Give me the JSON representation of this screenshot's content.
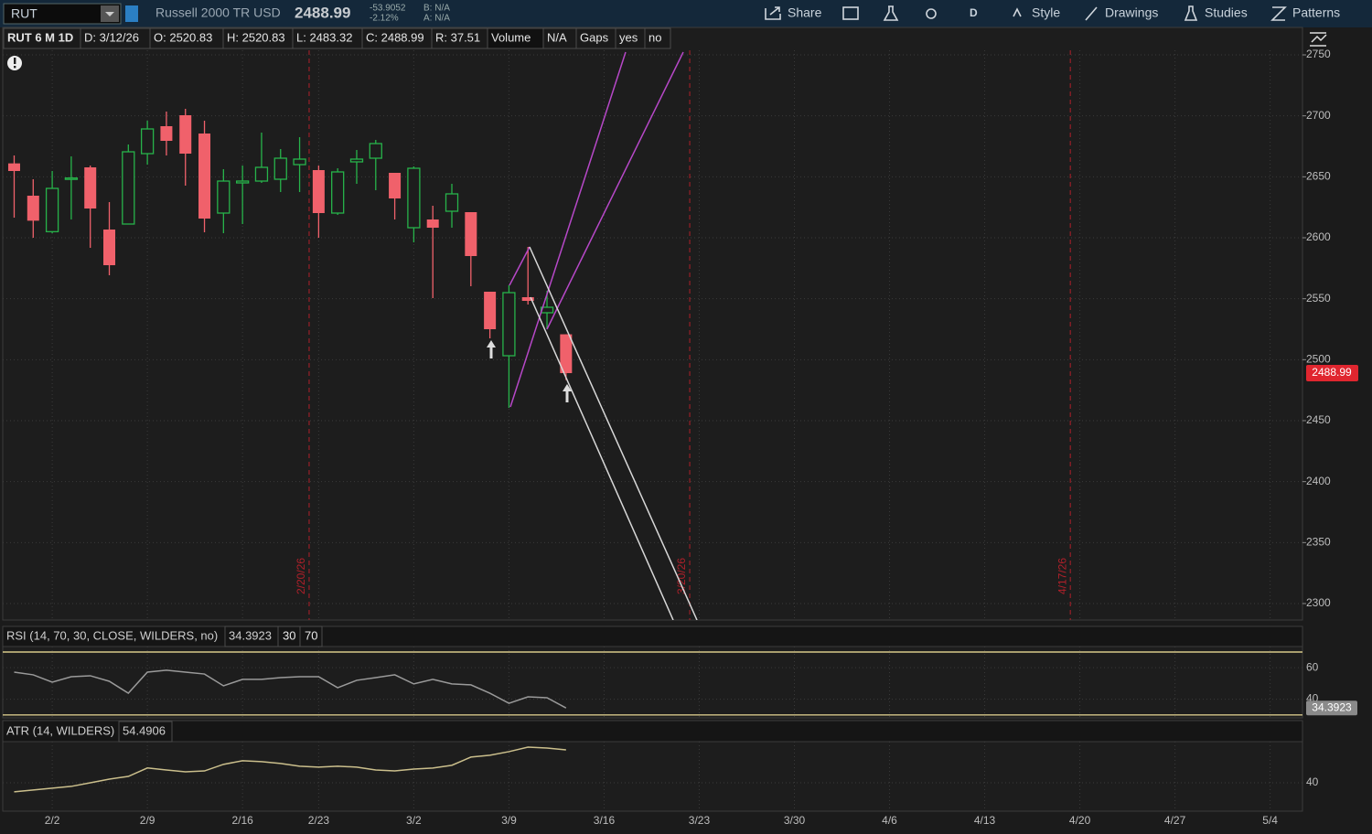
{
  "toolbar": {
    "symbol": "RUT",
    "description": "Russell 2000 TR USD",
    "last": "2488.99",
    "net_change": "-53.9052",
    "percent_change": "-2.12%",
    "bid": "B: N/A",
    "ask": "A: N/A",
    "buttons": [
      "Share",
      "D",
      "Style",
      "Drawings",
      "Studies",
      "Patterns"
    ]
  },
  "info_bar": [
    "RUT 6 M 1D",
    "D: 3/12/26",
    "O: 2520.83",
    "H: 2520.83",
    "L: 2483.32",
    "C: 2488.99",
    "R: 37.51",
    "Volume",
    "N/A",
    "Gaps",
    "yes",
    "no"
  ],
  "chart_data": {
    "type": "candlestick",
    "open": [
      2661,
      2634.5,
      2605,
      2648,
      2657.75,
      2606.75,
      2611.25,
      2669,
      2691.5,
      2700.5,
      2685.5,
      2620.25,
      2645,
      2646.5,
      2648,
      2660,
      2655.5,
      2620.25,
      2662.25,
      2665.25,
      2653.25,
      2608.25,
      2615,
      2621.75,
      2621,
      2555.75,
      2503.25,
      2551.25,
      2538.5,
      2520.83
    ],
    "high": [
      2667.5,
      2648,
      2654.75,
      2666.75,
      2659.25,
      2629.25,
      2676.5,
      2696,
      2703.5,
      2705.75,
      2696,
      2656.25,
      2659.25,
      2686.25,
      2672.75,
      2682.5,
      2659.25,
      2657,
      2672,
      2680.25,
      2653.25,
      2658.5,
      2626.25,
      2644.25,
      2621,
      2555.75,
      2561,
      2592.5,
      2556.5,
      2520.83
    ],
    "low": [
      2616.5,
      2600,
      2603.75,
      2615,
      2591.75,
      2569.25,
      2611,
      2660,
      2667.5,
      2642.75,
      2604.5,
      2603.75,
      2611.25,
      2645,
      2637.5,
      2637.5,
      2600,
      2618.75,
      2644.25,
      2639,
      2615,
      2596.25,
      2550.5,
      2608.25,
      2560.25,
      2517.5,
      2460.5,
      2545.25,
      2525,
      2483.32
    ],
    "close": [
      2654.75,
      2614,
      2640.5,
      2649,
      2624,
      2577.5,
      2670.5,
      2689.25,
      2679.5,
      2669,
      2615.75,
      2646.5,
      2646.5,
      2657.75,
      2665.25,
      2664.5,
      2620.25,
      2654,
      2664.5,
      2677.25,
      2632.25,
      2657,
      2608.25,
      2636,
      2585,
      2525,
      2555,
      2548.25,
      2543,
      2488.99
    ],
    "up_color": "#27b34a",
    "down_color": "#f0616b",
    "last_price_color": "#e0262f",
    "ylim": [
      2286.5,
      2753.75
    ],
    "yticks": [
      2300,
      2350,
      2400,
      2450,
      2500,
      2550,
      2600,
      2650,
      2700,
      2750
    ],
    "xlim": [
      -0.6,
      67.7
    ],
    "xticks": [
      {
        "value": 2,
        "label": "2/2"
      },
      {
        "value": 7,
        "label": "2/9"
      },
      {
        "value": 12,
        "label": "2/16"
      },
      {
        "value": 16,
        "label": "2/23"
      },
      {
        "value": 21,
        "label": "3/2"
      },
      {
        "value": 26,
        "label": "3/9"
      },
      {
        "value": 31,
        "label": "3/16"
      },
      {
        "value": 36,
        "label": "3/23"
      },
      {
        "value": 41,
        "label": "3/30"
      },
      {
        "value": 46,
        "label": "4/6"
      },
      {
        "value": 51,
        "label": "4/13"
      },
      {
        "value": 56,
        "label": "4/20"
      },
      {
        "value": 61,
        "label": "4/27"
      },
      {
        "value": 66,
        "label": "5/4"
      }
    ],
    "grid": true,
    "period_lines": [
      {
        "value": 15.5,
        "label": "2/20/26"
      },
      {
        "value": 35.5,
        "label": "3/20/26"
      },
      {
        "value": 55.5,
        "label": "4/17/26"
      }
    ],
    "period_color": "#b0202a",
    "rsi": {
      "title": "RSI (14, 70, 30, CLOSE, WILDERS, no)",
      "values": [
        57.2,
        55.5,
        50.8,
        54.3,
        54.9,
        51.4,
        43.8,
        57.2,
        58.4,
        57.2,
        56.0,
        48.5,
        52.6,
        52.6,
        53.7,
        54.3,
        54.3,
        47.3,
        52.0,
        53.7,
        55.5,
        49.7,
        52.6,
        49.7,
        49.1,
        43.8,
        37.4,
        41.5,
        40.9,
        34.3923
      ],
      "levels": [
        30,
        70
      ],
      "ylim": [
        28.7,
        74.65
      ],
      "yticks": [
        40,
        60
      ],
      "color": "#9a9a9a",
      "level_color": "#d8c98a"
    },
    "atr": {
      "title": "ATR (14, WILDERS)",
      "values": [
        36.0,
        36.8,
        37.6,
        38.4,
        40.0,
        41.6,
        42.8,
        46.5,
        45.6,
        44.8,
        45.2,
        48.1,
        49.7,
        49.3,
        48.5,
        47.3,
        46.9,
        47.3,
        46.9,
        45.6,
        45.2,
        46.0,
        46.5,
        47.7,
        51.3,
        52.1,
        53.7,
        55.7,
        55.3,
        54.4906
      ],
      "ylim": [
        27.9,
        57.3
      ],
      "yticks": [
        40
      ],
      "color": "#cbbf8c"
    }
  }
}
